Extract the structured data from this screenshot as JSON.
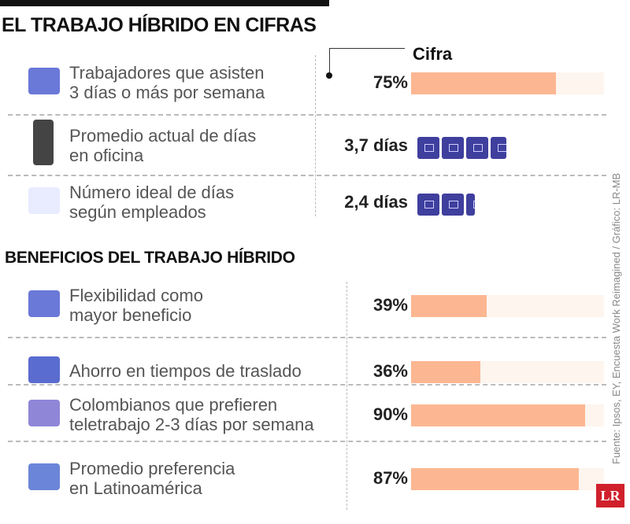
{
  "title": "EL TRABAJO HÍBRIDO EN CIFRAS",
  "column_header": "Cifra",
  "section2_title": "BENEFICIOS DEL TRABAJO HÍBRIDO",
  "source": "Fuente: Ipsos, EY, Encuesta Work Reimagined / Gráfico: LR-MB",
  "logo": "LR",
  "colors": {
    "bar_fill": "#fcb792",
    "bar_track": "#fdf5ee",
    "day_icon": "#3f3f9e",
    "logo": "#d0202b"
  },
  "chart_data": [
    {
      "type": "bar",
      "title": "EL TRABAJO HÍBRIDO EN CIFRAS",
      "items": [
        {
          "label": "Trabajadores que asisten 3 días o más por semana",
          "line1": "Trabajadores que asisten",
          "line2": "3 días o más por semana",
          "value": 75,
          "unit": "%",
          "display": "75%",
          "icon": "email-chat-icon"
        },
        {
          "label": "Promedio actual de días en oficina",
          "line1": "Promedio actual de días",
          "line2": "en oficina",
          "value": 3.7,
          "unit": "días",
          "display": "3,7 días",
          "icon": "smartphone-icon"
        },
        {
          "label": "Número ideal de días según empleados",
          "line1": "Número ideal de días",
          "line2": "según empleados",
          "value": 2.4,
          "unit": "días",
          "display": "2,4 días",
          "icon": "window-icon"
        }
      ]
    },
    {
      "type": "bar",
      "title": "BENEFICIOS DEL TRABAJO HÍBRIDO",
      "ylim": [
        0,
        100
      ],
      "items": [
        {
          "label": "Flexibilidad como mayor beneficio",
          "line1": "Flexibilidad como",
          "line2": "mayor beneficio",
          "value": 39,
          "display": "39%",
          "icon": "email-chat-icon"
        },
        {
          "label": "Ahorro en tiempos de traslado",
          "line1": "Ahorro en tiempos de traslado",
          "line2": "",
          "value": 36,
          "display": "36%",
          "icon": "clock-card-icon"
        },
        {
          "label": "Colombianos que prefieren teletrabajo 2-3 días por semana",
          "line1": "Colombianos que prefieren",
          "line2": "teletrabajo 2-3 días por semana",
          "value": 90,
          "display": "90%",
          "icon": "profile-card-icon"
        },
        {
          "label": "Promedio preferencia en Latinoamérica",
          "line1": "Promedio preferencia",
          "line2": "en Latinoamérica",
          "value": 87,
          "display": "87%",
          "icon": "search-card-icon"
        }
      ]
    }
  ]
}
